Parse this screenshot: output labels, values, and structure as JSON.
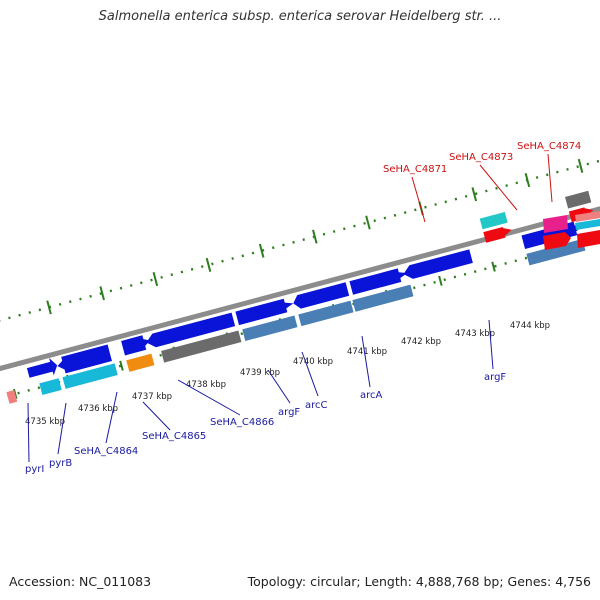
{
  "title": "Salmonella enterica subsp. enterica serovar Heidelberg str. ...",
  "accession_label": "Accession: NC_011083",
  "topology_label": "Topology: circular; Length: 4,888,768 bp; Genes: 4,756",
  "colors": {
    "backbone": "#8c8c8c",
    "tick": "#2e7d1e",
    "forward_gene": "#0a14d8",
    "reverse_gene": "#4a7fb5",
    "gene_label_dark": "#1a1aa0",
    "gene_label_red": "#cc1111",
    "grey_gene": "#6b6b6b",
    "cyan_gene": "#18b8d8",
    "teal_gene": "#22c8c8",
    "orange_gene": "#f08c10",
    "pink_gene": "#e8208c",
    "red_gene": "#ee0a10",
    "salmon_gene": "#f08080"
  },
  "axis": {
    "unit": "kbp",
    "tick_labels": [
      "4735 kbp",
      "4736 kbp",
      "4737 kbp",
      "4738 kbp",
      "4739 kbp",
      "4740 kbp",
      "4741 kbp",
      "4742 kbp",
      "4743 kbp",
      "4744 kbp"
    ]
  },
  "gene_labels": {
    "pyrI": "pyrI",
    "pyrB": "pyrB",
    "SeHA_C4864": "SeHA_C4864",
    "SeHA_C4865": "SeHA_C4865",
    "SeHA_C4866": "SeHA_C4866",
    "argF_1": "argF",
    "arcC": "arcC",
    "arcA": "arcA",
    "argF_2": "argF",
    "SeHA_C4871": "SeHA_C4871",
    "SeHA_C4873": "SeHA_C4873",
    "SeHA_C4874": "SeHA_C4874"
  }
}
